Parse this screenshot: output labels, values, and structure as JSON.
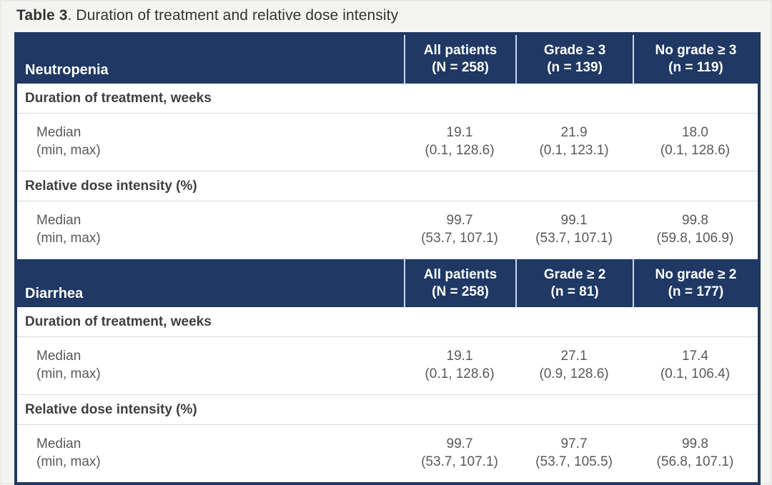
{
  "title": {
    "bold": "Table 3",
    "rest": ". Duration of treatment and relative dose intensity"
  },
  "colors": {
    "page_bg": "#f4f4f2",
    "table_bg": "#ffffff",
    "header_bg": "#1f3864",
    "header_text": "#ffffff",
    "header_divider": "#c9d7ea",
    "body_text": "#595959",
    "section_text": "#3f3f3f",
    "row_divider": "#d9d9d9",
    "title_text": "#333333"
  },
  "sections": [
    {
      "name": "Neutropenia",
      "columns": [
        {
          "line1": "All patients",
          "line2": "(N = 258)"
        },
        {
          "line1": "Grade ≥ 3",
          "line2": "(n = 139)"
        },
        {
          "line1": "No grade ≥ 3",
          "line2": "(n = 119)"
        }
      ],
      "groups": [
        {
          "label": "Duration of treatment, weeks",
          "rows": [
            {
              "label": "Median",
              "values": [
                "19.1",
                "21.9",
                "18.0"
              ]
            },
            {
              "label": "(min, max)",
              "values": [
                "(0.1, 128.6)",
                "(0.1, 123.1)",
                "(0.1, 128.6)"
              ]
            }
          ]
        },
        {
          "label": "Relative dose intensity (%)",
          "rows": [
            {
              "label": "Median",
              "values": [
                "99.7",
                "99.1",
                "99.8"
              ]
            },
            {
              "label": "(min, max)",
              "values": [
                "(53.7, 107.1)",
                "(53.7, 107.1)",
                "(59.8, 106.9)"
              ]
            }
          ]
        }
      ]
    },
    {
      "name": "Diarrhea",
      "columns": [
        {
          "line1": "All patients",
          "line2": "(N = 258)"
        },
        {
          "line1": "Grade ≥ 2",
          "line2": "(n = 81)"
        },
        {
          "line1": "No grade ≥ 2",
          "line2": "(n = 177)"
        }
      ],
      "groups": [
        {
          "label": "Duration of treatment, weeks",
          "rows": [
            {
              "label": "Median",
              "values": [
                "19.1",
                "27.1",
                "17.4"
              ]
            },
            {
              "label": "(min, max)",
              "values": [
                "(0.1, 128.6)",
                "(0.9, 128.6)",
                "(0.1, 106.4)"
              ]
            }
          ]
        },
        {
          "label": "Relative dose intensity (%)",
          "rows": [
            {
              "label": "Median",
              "values": [
                "99.7",
                "97.7",
                "99.8"
              ]
            },
            {
              "label": "(min, max)",
              "values": [
                "(53.7, 107.1)",
                "(53.7, 105.5)",
                "(56.8, 107.1)"
              ]
            }
          ]
        }
      ]
    }
  ]
}
